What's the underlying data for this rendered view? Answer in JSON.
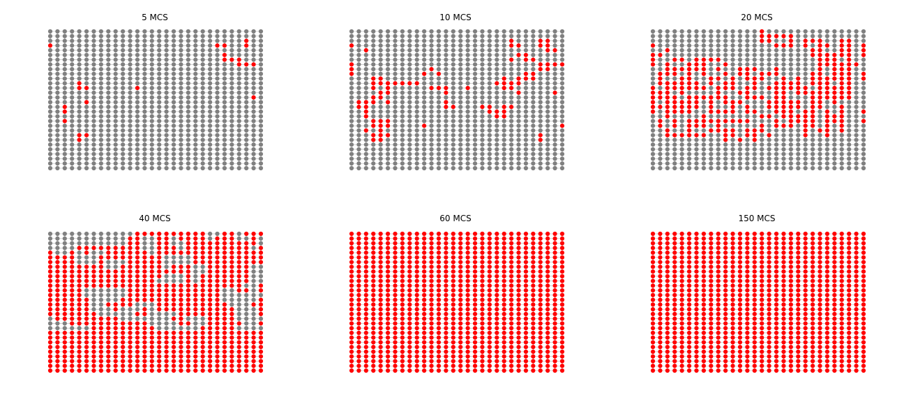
{
  "colors": {
    "inactive": "#808080",
    "active": "#ff0000",
    "edge": "#b0b0b0",
    "background": "#ffffff"
  },
  "grid": {
    "columns": 30,
    "rows": 30
  },
  "panels": [
    {
      "title": "5 MCS",
      "state": "sparse",
      "active_cells": [
        [
          0,
          3
        ],
        [
          23,
          3
        ],
        [
          24,
          3
        ],
        [
          27,
          2
        ],
        [
          27,
          3
        ],
        [
          24,
          5
        ],
        [
          24,
          6
        ],
        [
          25,
          6
        ],
        [
          26,
          6
        ],
        [
          26,
          7
        ],
        [
          27,
          7
        ],
        [
          28,
          7
        ],
        [
          4,
          11
        ],
        [
          4,
          12
        ],
        [
          5,
          12
        ],
        [
          12,
          12
        ],
        [
          28,
          14
        ],
        [
          5,
          15
        ],
        [
          2,
          16
        ],
        [
          2,
          17
        ],
        [
          2,
          19
        ],
        [
          4,
          22
        ],
        [
          4,
          23
        ],
        [
          5,
          22
        ]
      ]
    },
    {
      "title": "10 MCS",
      "state": "sparse",
      "active_cells": [
        [
          0,
          3
        ],
        [
          2,
          4
        ],
        [
          22,
          2
        ],
        [
          22,
          3
        ],
        [
          23,
          3
        ],
        [
          26,
          2
        ],
        [
          26,
          3
        ],
        [
          27,
          2
        ],
        [
          27,
          3
        ],
        [
          27,
          4
        ],
        [
          28,
          4
        ],
        [
          23,
          5
        ],
        [
          24,
          5
        ],
        [
          24,
          6
        ],
        [
          25,
          6
        ],
        [
          22,
          6
        ],
        [
          26,
          7
        ],
        [
          26,
          8
        ],
        [
          27,
          7
        ],
        [
          27,
          8
        ],
        [
          28,
          7
        ],
        [
          29,
          7
        ],
        [
          0,
          7
        ],
        [
          0,
          8
        ],
        [
          0,
          9
        ],
        [
          11,
          8
        ],
        [
          12,
          9
        ],
        [
          10,
          9
        ],
        [
          3,
          10
        ],
        [
          4,
          10
        ],
        [
          3,
          11
        ],
        [
          4,
          11
        ],
        [
          5,
          11
        ],
        [
          6,
          11
        ],
        [
          7,
          11
        ],
        [
          8,
          11
        ],
        [
          9,
          11
        ],
        [
          3,
          12
        ],
        [
          5,
          12
        ],
        [
          5,
          13
        ],
        [
          4,
          13
        ],
        [
          11,
          12
        ],
        [
          12,
          12
        ],
        [
          13,
          12
        ],
        [
          13,
          13
        ],
        [
          16,
          12
        ],
        [
          21,
          10
        ],
        [
          21,
          11
        ],
        [
          22,
          11
        ],
        [
          23,
          11
        ],
        [
          22,
          12
        ],
        [
          21,
          12
        ],
        [
          23,
          13
        ],
        [
          20,
          11
        ],
        [
          23,
          10
        ],
        [
          24,
          10
        ],
        [
          25,
          10
        ],
        [
          24,
          9
        ],
        [
          25,
          9
        ],
        [
          28,
          13
        ],
        [
          1,
          15
        ],
        [
          2,
          15
        ],
        [
          3,
          15
        ],
        [
          1,
          16
        ],
        [
          2,
          16
        ],
        [
          2,
          17
        ],
        [
          3,
          14
        ],
        [
          4,
          14
        ],
        [
          5,
          15
        ],
        [
          13,
          15
        ],
        [
          13,
          16
        ],
        [
          14,
          16
        ],
        [
          18,
          16
        ],
        [
          19,
          16
        ],
        [
          19,
          17
        ],
        [
          20,
          17
        ],
        [
          21,
          16
        ],
        [
          21,
          17
        ],
        [
          21,
          18
        ],
        [
          20,
          18
        ],
        [
          22,
          16
        ],
        [
          2,
          18
        ],
        [
          3,
          19
        ],
        [
          3,
          20
        ],
        [
          4,
          19
        ],
        [
          4,
          20
        ],
        [
          5,
          20
        ],
        [
          5,
          19
        ],
        [
          4,
          21
        ],
        [
          3,
          22
        ],
        [
          4,
          22
        ],
        [
          5,
          22
        ],
        [
          2,
          21
        ],
        [
          10,
          20
        ],
        [
          29,
          20
        ],
        [
          26,
          22
        ],
        [
          26,
          23
        ],
        [
          3,
          23
        ],
        [
          4,
          23
        ]
      ],
      "active_regions": []
    },
    {
      "title": "20 MCS",
      "state": "mixed",
      "active_regions": [
        {
          "c": [
            1,
            5
          ],
          "r": [
            6,
            16
          ],
          "p": 0.7
        },
        {
          "c": [
            4,
            11
          ],
          "r": [
            6,
            13
          ],
          "p": 0.6
        },
        {
          "c": [
            11,
            17
          ],
          "r": [
            8,
            18
          ],
          "p": 0.45
        },
        {
          "c": [
            14,
            20
          ],
          "r": [
            10,
            17
          ],
          "p": 0.55
        },
        {
          "c": [
            17,
            21
          ],
          "r": [
            12,
            20
          ],
          "p": 0.6
        },
        {
          "c": [
            20,
            26
          ],
          "r": [
            9,
            22
          ],
          "p": 0.7
        },
        {
          "c": [
            23,
            27
          ],
          "r": [
            2,
            14
          ],
          "p": 0.85
        },
        {
          "c": [
            21,
            26
          ],
          "r": [
            2,
            6
          ],
          "p": 0.55
        },
        {
          "c": [
            15,
            19
          ],
          "r": [
            0,
            3
          ],
          "p": 0.45
        },
        {
          "c": [
            1,
            9
          ],
          "r": [
            14,
            22
          ],
          "p": 0.5
        },
        {
          "c": [
            9,
            15
          ],
          "r": [
            17,
            23
          ],
          "p": 0.45
        },
        {
          "c": [
            26,
            29
          ],
          "r": [
            3,
            10
          ],
          "p": 0.35
        },
        {
          "c": [
            0,
            1
          ],
          "r": [
            5,
            17
          ],
          "p": 0.6
        },
        {
          "c": [
            10,
            14
          ],
          "r": [
            11,
            16
          ],
          "p": 0.5
        }
      ],
      "active_cells": [
        [
          0,
          3
        ],
        [
          2,
          4
        ],
        [
          29,
          3
        ],
        [
          29,
          4
        ],
        [
          29,
          17
        ],
        [
          29,
          19
        ],
        [
          16,
          22
        ]
      ]
    },
    {
      "title": "40 MCS",
      "state": "mostly-active",
      "active_regions": [],
      "active_cells": [],
      "inactive_cells": [
        [
          0,
          0
        ],
        [
          1,
          0
        ],
        [
          2,
          0
        ],
        [
          3,
          0
        ],
        [
          4,
          0
        ],
        [
          5,
          0
        ],
        [
          6,
          0
        ],
        [
          7,
          0
        ],
        [
          8,
          0
        ],
        [
          9,
          0
        ],
        [
          10,
          0
        ],
        [
          11,
          0
        ],
        [
          0,
          1
        ],
        [
          1,
          1
        ],
        [
          2,
          1
        ],
        [
          3,
          1
        ],
        [
          4,
          1
        ],
        [
          5,
          1
        ],
        [
          6,
          1
        ],
        [
          7,
          1
        ],
        [
          8,
          1
        ],
        [
          9,
          1
        ],
        [
          10,
          1
        ],
        [
          0,
          2
        ],
        [
          1,
          2
        ],
        [
          2,
          2
        ],
        [
          3,
          2
        ],
        [
          4,
          2
        ],
        [
          5,
          2
        ],
        [
          6,
          2
        ],
        [
          7,
          2
        ],
        [
          8,
          2
        ],
        [
          9,
          2
        ],
        [
          10,
          2
        ],
        [
          0,
          3
        ],
        [
          1,
          3
        ],
        [
          2,
          3
        ],
        [
          3,
          3
        ],
        [
          13,
          1
        ],
        [
          14,
          1
        ],
        [
          13,
          2
        ],
        [
          14,
          2
        ],
        [
          13,
          3
        ],
        [
          14,
          3
        ],
        [
          14,
          4
        ],
        [
          17,
          1
        ],
        [
          17,
          2
        ],
        [
          18,
          2
        ],
        [
          18,
          3
        ],
        [
          22,
          0
        ],
        [
          23,
          0
        ],
        [
          22,
          1
        ],
        [
          26,
          0
        ],
        [
          26,
          1
        ],
        [
          27,
          1
        ],
        [
          29,
          1
        ],
        [
          29,
          2
        ],
        [
          28,
          3
        ],
        [
          1,
          4
        ],
        [
          2,
          4
        ],
        [
          4,
          4
        ],
        [
          6,
          4
        ],
        [
          7,
          4
        ],
        [
          4,
          5
        ],
        [
          5,
          5
        ],
        [
          6,
          5
        ],
        [
          4,
          6
        ],
        [
          5,
          6
        ],
        [
          6,
          6
        ],
        [
          8,
          6
        ],
        [
          9,
          6
        ],
        [
          10,
          6
        ],
        [
          8,
          7
        ],
        [
          9,
          7
        ],
        [
          16,
          5
        ],
        [
          17,
          5
        ],
        [
          16,
          6
        ],
        [
          17,
          6
        ],
        [
          18,
          5
        ],
        [
          19,
          5
        ],
        [
          18,
          6
        ],
        [
          19,
          6
        ],
        [
          16,
          7
        ],
        [
          20,
          7
        ],
        [
          21,
          7
        ],
        [
          20,
          8
        ],
        [
          21,
          8
        ],
        [
          20,
          9
        ],
        [
          20,
          10
        ],
        [
          16,
          10
        ],
        [
          17,
          10
        ],
        [
          18,
          10
        ],
        [
          18,
          9
        ],
        [
          17,
          9
        ],
        [
          16,
          9
        ],
        [
          15,
          10
        ],
        [
          28,
          7
        ],
        [
          29,
          7
        ],
        [
          28,
          8
        ],
        [
          29,
          8
        ],
        [
          28,
          9
        ],
        [
          29,
          9
        ],
        [
          28,
          10
        ],
        [
          29,
          10
        ],
        [
          28,
          11
        ],
        [
          27,
          11
        ],
        [
          28,
          12
        ],
        [
          28,
          13
        ],
        [
          5,
          12
        ],
        [
          6,
          12
        ],
        [
          7,
          12
        ],
        [
          8,
          12
        ],
        [
          9,
          12
        ],
        [
          10,
          12
        ],
        [
          5,
          13
        ],
        [
          6,
          13
        ],
        [
          7,
          13
        ],
        [
          8,
          13
        ],
        [
          9,
          13
        ],
        [
          10,
          13
        ],
        [
          7,
          14
        ],
        [
          8,
          14
        ],
        [
          9,
          14
        ],
        [
          6,
          14
        ],
        [
          6,
          15
        ],
        [
          7,
          15
        ],
        [
          6,
          16
        ],
        [
          7,
          16
        ],
        [
          12,
          15
        ],
        [
          13,
          15
        ],
        [
          14,
          15
        ],
        [
          12,
          16
        ],
        [
          14,
          16
        ],
        [
          24,
          12
        ],
        [
          25,
          12
        ],
        [
          24,
          13
        ],
        [
          25,
          13
        ],
        [
          26,
          13
        ],
        [
          27,
          13
        ],
        [
          28,
          14
        ],
        [
          27,
          14
        ],
        [
          26,
          14
        ],
        [
          25,
          14
        ],
        [
          24,
          14
        ],
        [
          26,
          15
        ],
        [
          27,
          15
        ],
        [
          25,
          15
        ],
        [
          29,
          13
        ],
        [
          14,
          18
        ],
        [
          15,
          18
        ],
        [
          14,
          17
        ],
        [
          16,
          17
        ],
        [
          17,
          17
        ],
        [
          15,
          17
        ],
        [
          7,
          17
        ],
        [
          8,
          17
        ],
        [
          8,
          16
        ],
        [
          9,
          17
        ],
        [
          10,
          16
        ],
        [
          11,
          16
        ],
        [
          10,
          17
        ],
        [
          11,
          17
        ],
        [
          10,
          18
        ],
        [
          11,
          18
        ],
        [
          12,
          18
        ],
        [
          13,
          18
        ],
        [
          14,
          19
        ],
        [
          15,
          19
        ],
        [
          0,
          18
        ],
        [
          0,
          19
        ],
        [
          1,
          19
        ],
        [
          2,
          19
        ],
        [
          0,
          20
        ],
        [
          1,
          20
        ],
        [
          2,
          20
        ],
        [
          3,
          20
        ],
        [
          4,
          20
        ],
        [
          5,
          20
        ],
        [
          19,
          18
        ],
        [
          20,
          18
        ],
        [
          21,
          18
        ],
        [
          20,
          19
        ],
        [
          21,
          19
        ],
        [
          16,
          19
        ],
        [
          17,
          19
        ],
        [
          26,
          16
        ],
        [
          27,
          16
        ],
        [
          28,
          16
        ],
        [
          26,
          17
        ],
        [
          27,
          17
        ],
        [
          28,
          17
        ],
        [
          26,
          18
        ],
        [
          27,
          18
        ],
        [
          28,
          18
        ],
        [
          29,
          18
        ],
        [
          27,
          19
        ],
        [
          28,
          19
        ],
        [
          26,
          20
        ],
        [
          27,
          20
        ],
        [
          28,
          20
        ],
        [
          29,
          20
        ],
        [
          15,
          20
        ],
        [
          16,
          20
        ],
        [
          17,
          20
        ],
        [
          18,
          20
        ],
        [
          19,
          20
        ],
        [
          20,
          20
        ],
        [
          15,
          19
        ],
        [
          16,
          18
        ]
      ]
    },
    {
      "title": "60 MCS",
      "state": "all-active",
      "active_cells": [],
      "active_regions": []
    },
    {
      "title": "150 MCS",
      "state": "all-active",
      "active_cells": [],
      "active_regions": []
    }
  ]
}
